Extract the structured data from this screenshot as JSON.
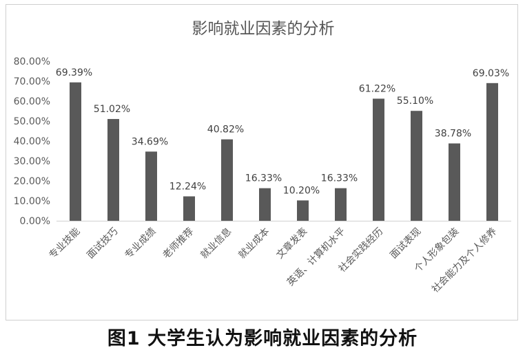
{
  "chart_data": {
    "type": "bar",
    "title": "影响就业因素的分析",
    "categories": [
      "专业技能",
      "面试技巧",
      "专业成绩",
      "老师推荐",
      "就业信息",
      "就业成本",
      "文章发表",
      "英语、计算机水平",
      "社会实践经历",
      "面试表现",
      "个人形象包装",
      "社会能力及个人修养"
    ],
    "values": [
      69.39,
      51.02,
      34.69,
      12.24,
      40.82,
      16.33,
      10.2,
      16.33,
      61.22,
      55.1,
      38.78,
      69.03
    ],
    "value_labels": [
      "69.39%",
      "51.02%",
      "34.69%",
      "12.24%",
      "40.82%",
      "16.33%",
      "10.20%",
      "16.33%",
      "61.22%",
      "55.10%",
      "38.78%",
      "69.03%"
    ],
    "yticks": [
      "0.00%",
      "10.00%",
      "20.00%",
      "30.00%",
      "40.00%",
      "50.00%",
      "60.00%",
      "70.00%",
      "80.00%"
    ],
    "ylim": [
      0,
      80
    ],
    "grid": false,
    "bar_color": "#595959",
    "xlabel": "",
    "ylabel": ""
  },
  "caption": "图1  大学生认为影响就业因素的分析"
}
